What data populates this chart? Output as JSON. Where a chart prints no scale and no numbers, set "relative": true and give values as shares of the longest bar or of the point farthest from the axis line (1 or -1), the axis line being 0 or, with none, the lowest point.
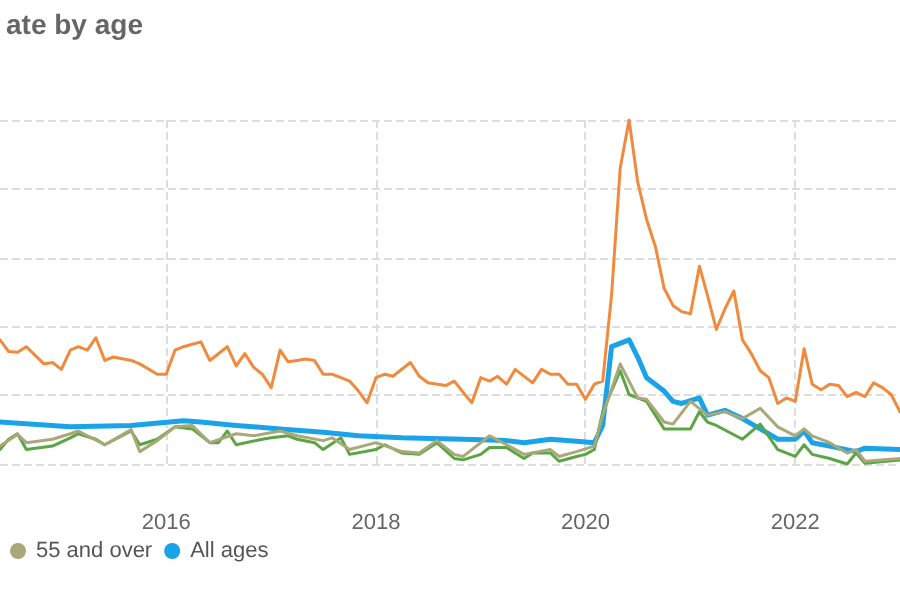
{
  "chart_data": {
    "type": "line",
    "title": "ate by age",
    "relative": true,
    "grid": true,
    "legend": "bottom left",
    "marker": "none",
    "line_style": "solid",
    "xlim": [
      "2014-06",
      "2023-01"
    ],
    "xticks": [
      "2016",
      "2018",
      "2020",
      "2022"
    ],
    "series": [
      {
        "color": "#f08a3c",
        "x": [
          "2014-06",
          "2014-07",
          "2014-08",
          "2014-09",
          "2014-11",
          "2014-12",
          "2015-01",
          "2015-02",
          "2015-03",
          "2015-04",
          "2015-05",
          "2015-06",
          "2015-07",
          "2015-09",
          "2015-10",
          "2015-12",
          "2016-01",
          "2016-02",
          "2016-03",
          "2016-05",
          "2016-06",
          "2016-08",
          "2016-09",
          "2016-10",
          "2016-11",
          "2016-12",
          "2017-01",
          "2017-02",
          "2017-03",
          "2017-04",
          "2017-05",
          "2017-06",
          "2017-07",
          "2017-08",
          "2017-09",
          "2017-10",
          "2017-11",
          "2017-12",
          "2018-01",
          "2018-02",
          "2018-03",
          "2018-05",
          "2018-06",
          "2018-07",
          "2018-09",
          "2018-10",
          "2018-11",
          "2018-12",
          "2019-01",
          "2019-02",
          "2019-03",
          "2019-04",
          "2019-05",
          "2019-07",
          "2019-08",
          "2019-09",
          "2019-10",
          "2019-11",
          "2019-12",
          "2020-01",
          "2020-02",
          "2020-03",
          "2020-04",
          "2020-05",
          "2020-06",
          "2020-07",
          "2020-08",
          "2020-09",
          "2020-10",
          "2020-11",
          "2020-12",
          "2021-01",
          "2021-02",
          "2021-03",
          "2021-04",
          "2021-05",
          "2021-06",
          "2021-07",
          "2021-08",
          "2021-09",
          "2021-10",
          "2021-11",
          "2021-12",
          "2022-01",
          "2022-02",
          "2022-03",
          "2022-04",
          "2022-05",
          "2022-06",
          "2022-07",
          "2022-08",
          "2022-09",
          "2022-10",
          "2022-11",
          "2022-12",
          "2023-01"
        ],
        "values": [
          0.361,
          0.327,
          0.325,
          0.341,
          0.291,
          0.295,
          0.275,
          0.331,
          0.341,
          0.331,
          0.367,
          0.301,
          0.311,
          0.301,
          0.291,
          0.261,
          0.261,
          0.331,
          0.341,
          0.355,
          0.301,
          0.341,
          0.285,
          0.321,
          0.281,
          0.261,
          0.222,
          0.331,
          0.297,
          0.301,
          0.305,
          0.301,
          0.261,
          0.261,
          0.251,
          0.241,
          0.212,
          0.178,
          0.251,
          0.261,
          0.255,
          0.295,
          0.255,
          0.236,
          0.228,
          0.241,
          0.208,
          0.178,
          0.251,
          0.241,
          0.255,
          0.232,
          0.275,
          0.236,
          0.275,
          0.261,
          0.261,
          0.232,
          0.232,
          0.188,
          0.232,
          0.241,
          0.491,
          0.86,
          1.0,
          0.82,
          0.711,
          0.631,
          0.511,
          0.461,
          0.443,
          0.437,
          0.575,
          0.491,
          0.391,
          0.451,
          0.503,
          0.361,
          0.321,
          0.271,
          0.251,
          0.176,
          0.192,
          0.182,
          0.335,
          0.232,
          0.216,
          0.232,
          0.228,
          0.196,
          0.208,
          0.196,
          0.236,
          0.222,
          0.202,
          0.152
        ]
      },
      {
        "color": "#5aa544",
        "x": [
          "2014-06",
          "2014-07",
          "2014-08",
          "2014-09",
          "2014-12",
          "2015-02",
          "2015-03",
          "2015-05",
          "2015-06",
          "2015-09",
          "2015-10",
          "2015-12",
          "2016-02",
          "2016-04",
          "2016-06",
          "2016-07",
          "2016-08",
          "2016-09",
          "2016-12",
          "2017-01",
          "2017-03",
          "2017-04",
          "2017-06",
          "2017-07",
          "2017-09",
          "2017-10",
          "2018-01",
          "2018-02",
          "2018-04",
          "2018-06",
          "2018-08",
          "2018-10",
          "2018-11",
          "2019-01",
          "2019-02",
          "2019-04",
          "2019-06",
          "2019-07",
          "2019-09",
          "2019-10",
          "2019-12",
          "2020-01",
          "2020-02",
          "2020-03",
          "2020-05",
          "2020-06",
          "2020-08",
          "2020-10",
          "2020-11",
          "2021-01",
          "2021-02",
          "2021-03",
          "2021-04",
          "2021-07",
          "2021-09",
          "2021-11",
          "2022-01",
          "2022-02",
          "2022-03",
          "2022-05",
          "2022-07",
          "2022-08",
          "2022-09",
          "2023-01"
        ],
        "values": [
          0.042,
          0.072,
          0.088,
          0.042,
          0.052,
          0.076,
          0.088,
          0.072,
          0.056,
          0.096,
          0.056,
          0.072,
          0.108,
          0.102,
          0.062,
          0.062,
          0.096,
          0.056,
          0.072,
          0.076,
          0.082,
          0.072,
          0.062,
          0.042,
          0.076,
          0.028,
          0.042,
          0.056,
          0.032,
          0.028,
          0.062,
          0.016,
          0.012,
          0.028,
          0.048,
          0.048,
          0.016,
          0.032,
          0.032,
          0.008,
          0.022,
          0.028,
          0.042,
          0.152,
          0.271,
          0.202,
          0.182,
          0.102,
          0.102,
          0.102,
          0.152,
          0.122,
          0.112,
          0.072,
          0.116,
          0.042,
          0.022,
          0.056,
          0.028,
          0.016,
          0.0,
          0.032,
          0.002,
          0.012
        ]
      },
      {
        "name": "55 and over",
        "color": "#aaa878",
        "x": [
          "2014-06",
          "2014-08",
          "2014-09",
          "2014-12",
          "2015-02",
          "2015-03",
          "2015-06",
          "2015-09",
          "2015-10",
          "2015-12",
          "2016-02",
          "2016-04",
          "2016-06",
          "2016-09",
          "2016-11",
          "2017-02",
          "2017-04",
          "2017-07",
          "2017-08",
          "2017-10",
          "2018-01",
          "2018-04",
          "2018-06",
          "2018-08",
          "2018-10",
          "2018-11",
          "2019-02",
          "2019-04",
          "2019-06",
          "2019-09",
          "2019-10",
          "2019-12",
          "2020-02",
          "2020-03",
          "2020-05",
          "2020-07",
          "2020-08",
          "2020-10",
          "2020-11",
          "2021-01",
          "2021-03",
          "2021-05",
          "2021-07",
          "2021-09",
          "2021-11",
          "2022-01",
          "2022-02",
          "2022-03",
          "2022-05",
          "2022-07",
          "2022-08",
          "2022-09",
          "2023-01"
        ],
        "values": [
          0.052,
          0.086,
          0.062,
          0.072,
          0.088,
          0.096,
          0.056,
          0.1,
          0.036,
          0.068,
          0.108,
          0.112,
          0.062,
          0.088,
          0.082,
          0.096,
          0.082,
          0.068,
          0.076,
          0.042,
          0.062,
          0.036,
          0.032,
          0.068,
          0.028,
          0.022,
          0.082,
          0.056,
          0.028,
          0.042,
          0.022,
          0.036,
          0.052,
          0.142,
          0.291,
          0.192,
          0.188,
          0.122,
          0.116,
          0.182,
          0.142,
          0.152,
          0.132,
          0.162,
          0.108,
          0.082,
          0.102,
          0.082,
          0.062,
          0.032,
          0.042,
          0.008,
          0.016
        ]
      },
      {
        "name": "All ages",
        "color": "#1aa3e8",
        "x": [
          "2014-06",
          "2015-02",
          "2015-09",
          "2016-03",
          "2016-05",
          "2016-09",
          "2017-02",
          "2017-07",
          "2017-11",
          "2018-04",
          "2018-11",
          "2019-04",
          "2019-06",
          "2019-09",
          "2019-12",
          "2020-02",
          "2020-03",
          "2020-04",
          "2020-06",
          "2020-07",
          "2020-08",
          "2020-10",
          "2020-11",
          "2020-12",
          "2021-02",
          "2021-03",
          "2021-05",
          "2021-07",
          "2021-09",
          "2021-11",
          "2022-01",
          "2022-02",
          "2022-03",
          "2022-05",
          "2022-08",
          "2022-09",
          "2023-01"
        ],
        "values": [
          0.122,
          0.108,
          0.112,
          0.126,
          0.122,
          0.112,
          0.102,
          0.092,
          0.082,
          0.076,
          0.072,
          0.068,
          0.062,
          0.072,
          0.066,
          0.062,
          0.112,
          0.341,
          0.361,
          0.311,
          0.251,
          0.212,
          0.182,
          0.176,
          0.192,
          0.142,
          0.156,
          0.132,
          0.102,
          0.072,
          0.072,
          0.096,
          0.062,
          0.052,
          0.036,
          0.046,
          0.042
        ]
      }
    ]
  }
}
